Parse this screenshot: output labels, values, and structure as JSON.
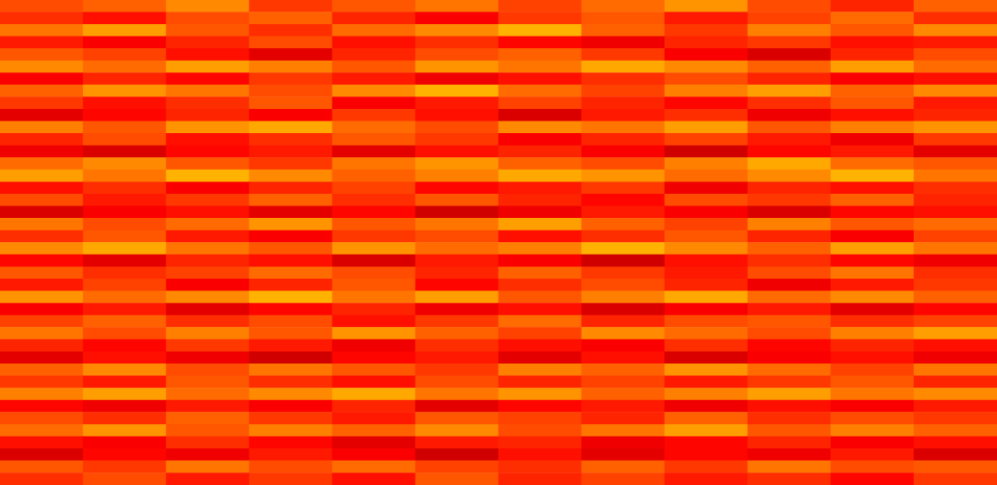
{
  "chart_data": {
    "type": "heatmap",
    "tick_labels": false,
    "grid": false,
    "color_range": [
      0,
      100
    ],
    "cells": [
      [
        80,
        78,
        74,
        82,
        79,
        76,
        81,
        77,
        73,
        80,
        84,
        78
      ],
      [
        83,
        86,
        80,
        78,
        84,
        88,
        82,
        79,
        85,
        81,
        77,
        83
      ],
      [
        76,
        72,
        79,
        83,
        77,
        74,
        70,
        78,
        82,
        75,
        79,
        74
      ],
      [
        85,
        88,
        84,
        80,
        86,
        83,
        87,
        89,
        84,
        82,
        86,
        85
      ],
      [
        79,
        81,
        86,
        90,
        84,
        80,
        78,
        82,
        88,
        91,
        84,
        80
      ],
      [
        74,
        77,
        72,
        75,
        79,
        73,
        76,
        71,
        74,
        78,
        72,
        77
      ],
      [
        88,
        84,
        87,
        82,
        85,
        89,
        86,
        83,
        80,
        84,
        88,
        86
      ],
      [
        78,
        73,
        76,
        80,
        74,
        70,
        77,
        81,
        75,
        72,
        78,
        74
      ],
      [
        82,
        86,
        83,
        79,
        88,
        85,
        81,
        84,
        87,
        83,
        79,
        85
      ],
      [
        90,
        87,
        84,
        88,
        82,
        86,
        91,
        85,
        83,
        89,
        86,
        84
      ],
      [
        75,
        79,
        73,
        71,
        77,
        80,
        74,
        76,
        72,
        79,
        75,
        73
      ],
      [
        84,
        80,
        86,
        83,
        79,
        82,
        88,
        84,
        81,
        85,
        89,
        82
      ],
      [
        89,
        91,
        87,
        85,
        90,
        86,
        84,
        88,
        92,
        87,
        85,
        90
      ],
      [
        77,
        74,
        79,
        82,
        76,
        73,
        78,
        80,
        75,
        71,
        77,
        79
      ],
      [
        72,
        76,
        70,
        74,
        78,
        75,
        71,
        73,
        77,
        74,
        70,
        76
      ],
      [
        86,
        83,
        88,
        84,
        81,
        87,
        85,
        82,
        89,
        84,
        86,
        83
      ],
      [
        80,
        85,
        82,
        78,
        83,
        79,
        84,
        87,
        80,
        82,
        78,
        84
      ],
      [
        91,
        88,
        86,
        90,
        87,
        92,
        89,
        85,
        88,
        91,
        87,
        86
      ],
      [
        76,
        80,
        77,
        73,
        79,
        76,
        72,
        78,
        81,
        75,
        79,
        77
      ],
      [
        83,
        79,
        85,
        88,
        82,
        80,
        86,
        83,
        79,
        84,
        88,
        81
      ],
      [
        74,
        71,
        76,
        79,
        73,
        77,
        75,
        70,
        74,
        78,
        72,
        76
      ],
      [
        87,
        90,
        84,
        86,
        91,
        85,
        88,
        92,
        86,
        83,
        87,
        89
      ],
      [
        79,
        83,
        81,
        77,
        80,
        84,
        78,
        82,
        85,
        80,
        76,
        83
      ],
      [
        85,
        81,
        88,
        84,
        79,
        87,
        83,
        80,
        84,
        89,
        85,
        82
      ],
      [
        73,
        77,
        74,
        70,
        76,
        72,
        79,
        75,
        71,
        77,
        74,
        78
      ],
      [
        88,
        85,
        90,
        87,
        84,
        89,
        86,
        91,
        88,
        85,
        90,
        87
      ],
      [
        81,
        78,
        83,
        80,
        86,
        82,
        77,
        84,
        80,
        79,
        83,
        81
      ],
      [
        76,
        80,
        75,
        79,
        73,
        78,
        81,
        74,
        77,
        80,
        75,
        72
      ],
      [
        84,
        87,
        82,
        85,
        89,
        83,
        86,
        88,
        83,
        87,
        84,
        86
      ],
      [
        90,
        86,
        89,
        92,
        87,
        85,
        90,
        86,
        91,
        88,
        86,
        89
      ],
      [
        78,
        74,
        80,
        76,
        79,
        82,
        75,
        78,
        73,
        77,
        81,
        76
      ],
      [
        82,
        85,
        79,
        83,
        86,
        80,
        84,
        81,
        85,
        82,
        79,
        84
      ],
      [
        75,
        72,
        77,
        74,
        71,
        76,
        73,
        78,
        75,
        72,
        76,
        74
      ],
      [
        87,
        89,
        85,
        88,
        84,
        90,
        87,
        85,
        89,
        86,
        88,
        85
      ],
      [
        80,
        83,
        78,
        82,
        85,
        79,
        81,
        84,
        78,
        83,
        80,
        82
      ],
      [
        77,
        73,
        79,
        75,
        78,
        74,
        80,
        76,
        72,
        79,
        75,
        78
      ],
      [
        86,
        88,
        83,
        87,
        90,
        85,
        84,
        89,
        87,
        84,
        88,
        86
      ],
      [
        91,
        87,
        89,
        85,
        88,
        92,
        86,
        90,
        87,
        89,
        85,
        91
      ],
      [
        79,
        82,
        76,
        80,
        77,
        81,
        83,
        78,
        82,
        76,
        80,
        79
      ],
      [
        83,
        80,
        85,
        82,
        86,
        79,
        84,
        81,
        85,
        83,
        87,
        82
      ]
    ]
  }
}
